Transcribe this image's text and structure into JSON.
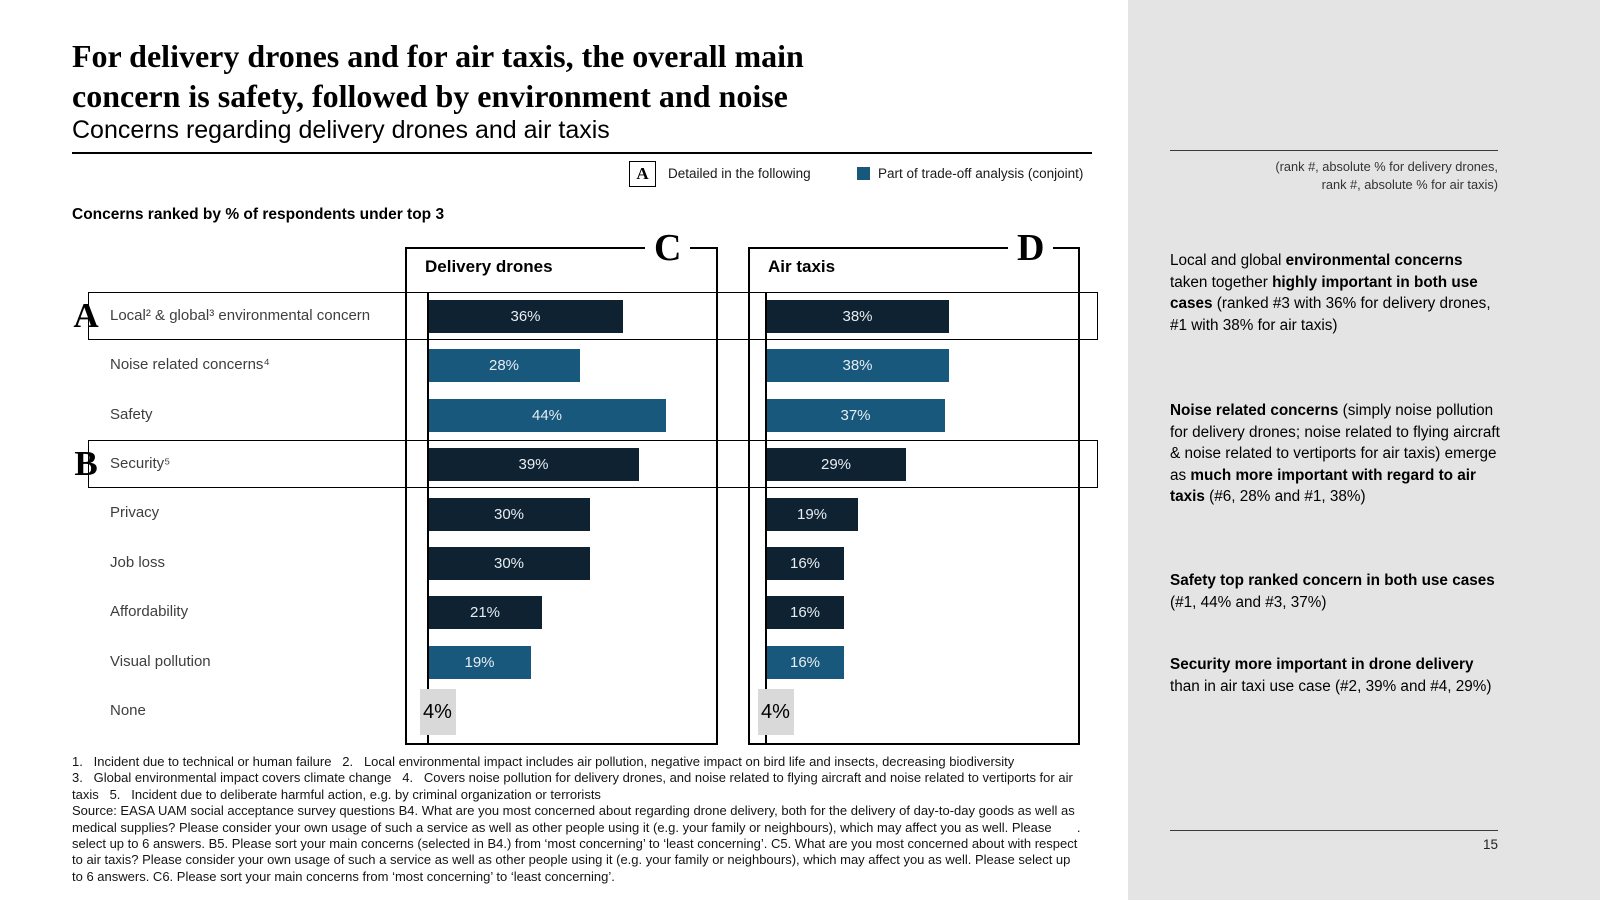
{
  "header": {
    "title_line1": "For delivery drones and for air taxis, the overall main",
    "title_line2": "concern is safety, followed by environment and noise",
    "subtitle": "Concerns regarding delivery drones and air taxis"
  },
  "legend": {
    "marker_letter": "A",
    "detailed_label": "Detailed in the following",
    "conjoint_label": "Part of trade-off analysis (conjoint)"
  },
  "section_label": "Concerns ranked by % of respondents under top 3",
  "chart_data": {
    "type": "bar",
    "orientation": "horizontal",
    "title": "Concerns ranked by % of respondents under top 3",
    "unit": "%",
    "categories": [
      "Local² & global³ environmental concern",
      "Noise related concerns⁴",
      "Safety",
      "Security⁵",
      "Privacy",
      "Job loss",
      "Affordability",
      "Visual pollution",
      "None"
    ],
    "series": [
      {
        "name": "Delivery drones",
        "marker": "C",
        "values": [
          36,
          28,
          44,
          39,
          30,
          30,
          21,
          19,
          4
        ]
      },
      {
        "name": "Air taxis",
        "marker": "D",
        "values": [
          38,
          38,
          37,
          29,
          19,
          16,
          16,
          16,
          4
        ]
      }
    ],
    "bar_styles": [
      "dark",
      "conjoint",
      "conjoint",
      "dark",
      "dark",
      "dark",
      "dark",
      "conjoint",
      "none"
    ],
    "row_markers": {
      "0": "A",
      "3": "B"
    },
    "colors": {
      "dark": "#0e2231",
      "conjoint": "#18587c",
      "none_highlight": "#d9d9d9"
    },
    "xlim": [
      0,
      50
    ],
    "grid": false,
    "legend_position": "top-right"
  },
  "sidebar": {
    "caption_line1": "(rank #, absolute % for delivery drones,",
    "caption_line2": "rank #, absolute % for air taxis)",
    "paragraphs": [
      [
        {
          "b": false,
          "t": "Local and global "
        },
        {
          "b": true,
          "t": "environmental concerns"
        },
        {
          "b": false,
          "t": " taken together "
        },
        {
          "b": true,
          "t": "highly important in both use cases"
        },
        {
          "b": false,
          "t": " (ranked #3 with 36% for delivery drones, #1 with 38% for air taxis)"
        }
      ],
      [
        {
          "b": true,
          "t": "Noise related concerns"
        },
        {
          "b": false,
          "t": " (simply noise pollution for delivery drones; noise related to flying aircraft & noise related to vertiports for air taxis) emerge as "
        },
        {
          "b": true,
          "t": "much more important with regard to air taxis"
        },
        {
          "b": false,
          "t": " (#6, 28% and #1, 38%)"
        }
      ],
      [
        {
          "b": true,
          "t": "Safety top ranked concern in both use cases"
        },
        {
          "b": false,
          "t": " (#1, 44% and #3, 37%)"
        }
      ],
      [
        {
          "b": true,
          "t": "Security more important in drone delivery"
        },
        {
          "b": false,
          "t": " than in air taxi use case (#2, 39% and #4, 29%)"
        }
      ]
    ],
    "page_number": "15"
  },
  "footnotes": [
    "1.   Incident due to technical or human failure   2.   Local environmental impact includes air pollution, negative impact on bird life and insects, decreasing biodiversity",
    "3.   Global environmental impact covers climate change   4.   Covers noise pollution for delivery drones, and noise related to flying aircraft and noise related to vertiports for air",
    "taxis   5.   Incident due to deliberate harmful action, e.g. by criminal organization or terrorists",
    "Source: EASA UAM social acceptance survey questions B4. What are you most concerned about regarding drone delivery, both for the delivery of day-to-day goods as well as",
    "medical supplies? Please consider your own usage of such a service as well as other people using it (e.g. your family or neighbours), which may affect you as well. Please       .",
    "select up to 6 answers. B5. Please sort your main concerns (selected in B4.) from ‘most concerning’ to ‘least concerning’. C5. What are you most concerned about with respect",
    "to air taxis? Please consider your own usage of such a service as well as other people using it (e.g. your family or neighbours), which may affect you as well. Please select up",
    "to 6 answers. C6. Please sort your main concerns from ‘most concerning’ to ‘least concerning’."
  ]
}
